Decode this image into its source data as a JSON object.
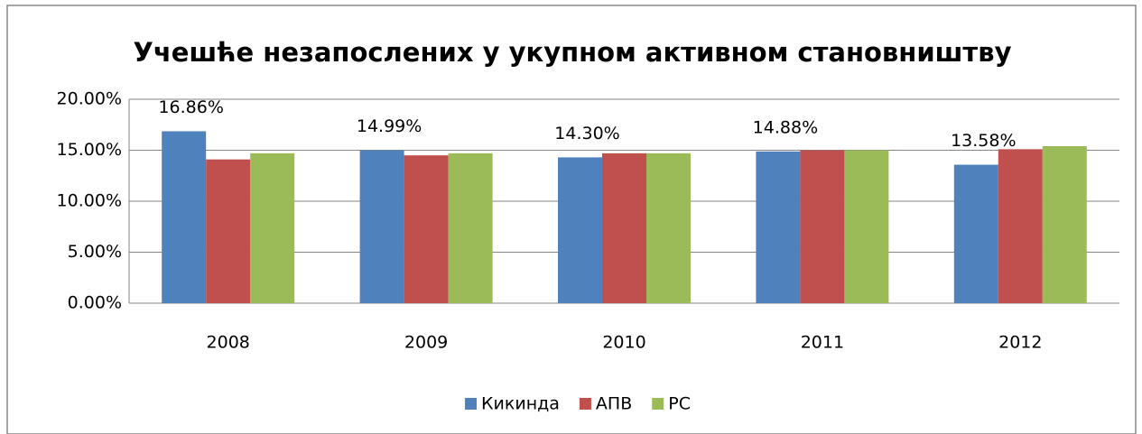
{
  "chart_data": {
    "type": "bar",
    "title": "Учешће незапослених у укупном активном становништву",
    "categories": [
      "2008",
      "2009",
      "2010",
      "2011",
      "2012"
    ],
    "series": [
      {
        "name": "Кикинда",
        "color": "#4f81bd",
        "values": [
          16.86,
          14.99,
          14.3,
          14.88,
          13.58
        ],
        "value_labels": [
          "16.86%",
          "14.99%",
          "14.30%",
          "14.88%",
          "13.58%"
        ]
      },
      {
        "name": "АПВ",
        "color": "#c0504d",
        "values": [
          14.1,
          14.5,
          14.7,
          15.0,
          15.1
        ]
      },
      {
        "name": "РС",
        "color": "#9bbb59",
        "values": [
          14.7,
          14.7,
          14.7,
          15.0,
          15.4
        ]
      }
    ],
    "ylim": [
      0,
      20
    ],
    "yticks": [
      {
        "value": 0,
        "label": "0.00%"
      },
      {
        "value": 5,
        "label": "5.00%"
      },
      {
        "value": 10,
        "label": "10.00%"
      },
      {
        "value": 15,
        "label": "15.00%"
      },
      {
        "value": 20,
        "label": "20.00%"
      }
    ],
    "grid": true,
    "legend": "bottom"
  }
}
